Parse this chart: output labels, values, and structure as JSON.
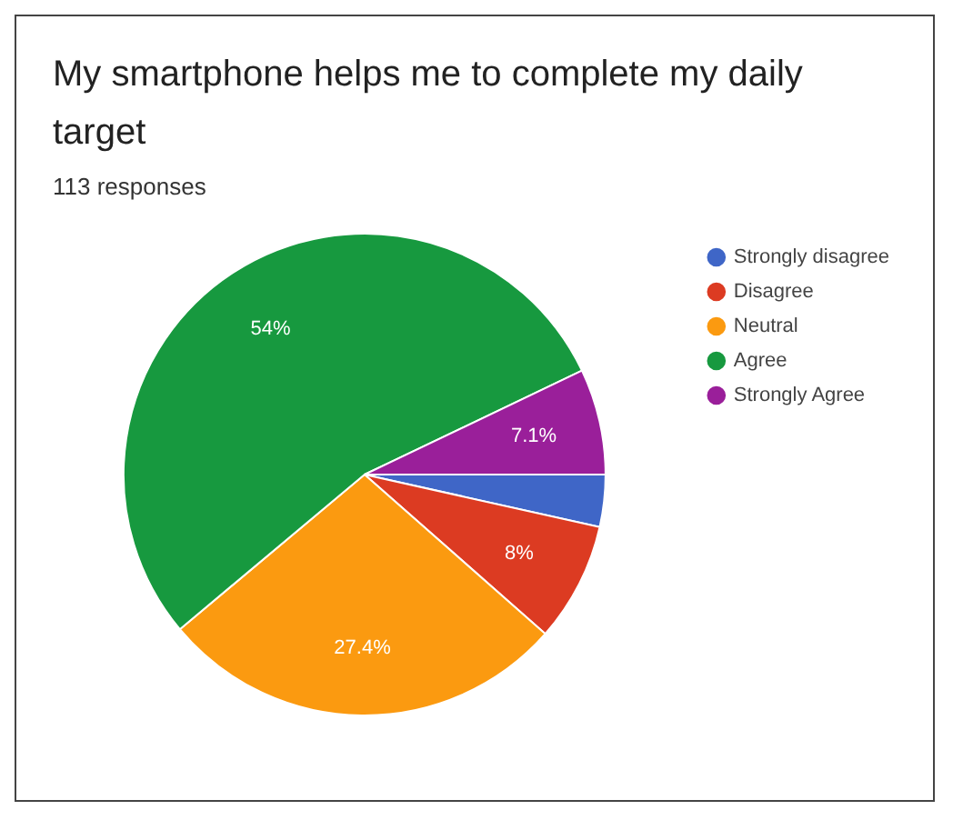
{
  "chart_data": {
    "type": "pie",
    "title": "My smartphone helps me to complete my daily target",
    "subtitle": "113 responses",
    "categories": [
      "Strongly disagree",
      "Disagree",
      "Neutral",
      "Agree",
      "Strongly Agree"
    ],
    "values": [
      3.5,
      8,
      27.4,
      54,
      7.1
    ],
    "value_labels": [
      null,
      "8%",
      "27.4%",
      "54%",
      "7.1%"
    ],
    "colors": [
      "#3f66c7",
      "#dc3b22",
      "#fb9a10",
      "#17993f",
      "#9a1f9a"
    ],
    "legend": "right"
  }
}
